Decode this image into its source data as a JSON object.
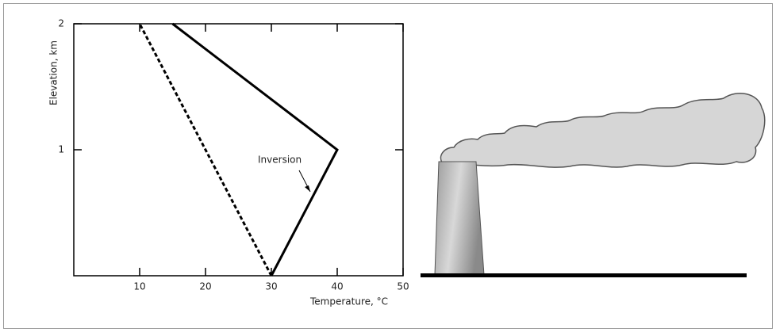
{
  "chart_data": {
    "type": "line",
    "xlabel": "Temperature, °C",
    "ylabel": "Elevation, km",
    "annotation": "Inversion",
    "xlim": [
      0,
      50
    ],
    "xticks": [
      10,
      20,
      30,
      40,
      50
    ],
    "ylim": [
      0,
      2
    ],
    "yticks": [
      1,
      2
    ],
    "grid": false,
    "series": [
      {
        "color": "#000000",
        "dashed": false,
        "x": [
          30,
          40,
          15
        ],
        "values": [
          0,
          1,
          2
        ]
      },
      {
        "color": "#000000",
        "dashed": true,
        "x": [
          30,
          10
        ],
        "values": [
          0,
          2
        ]
      }
    ]
  }
}
